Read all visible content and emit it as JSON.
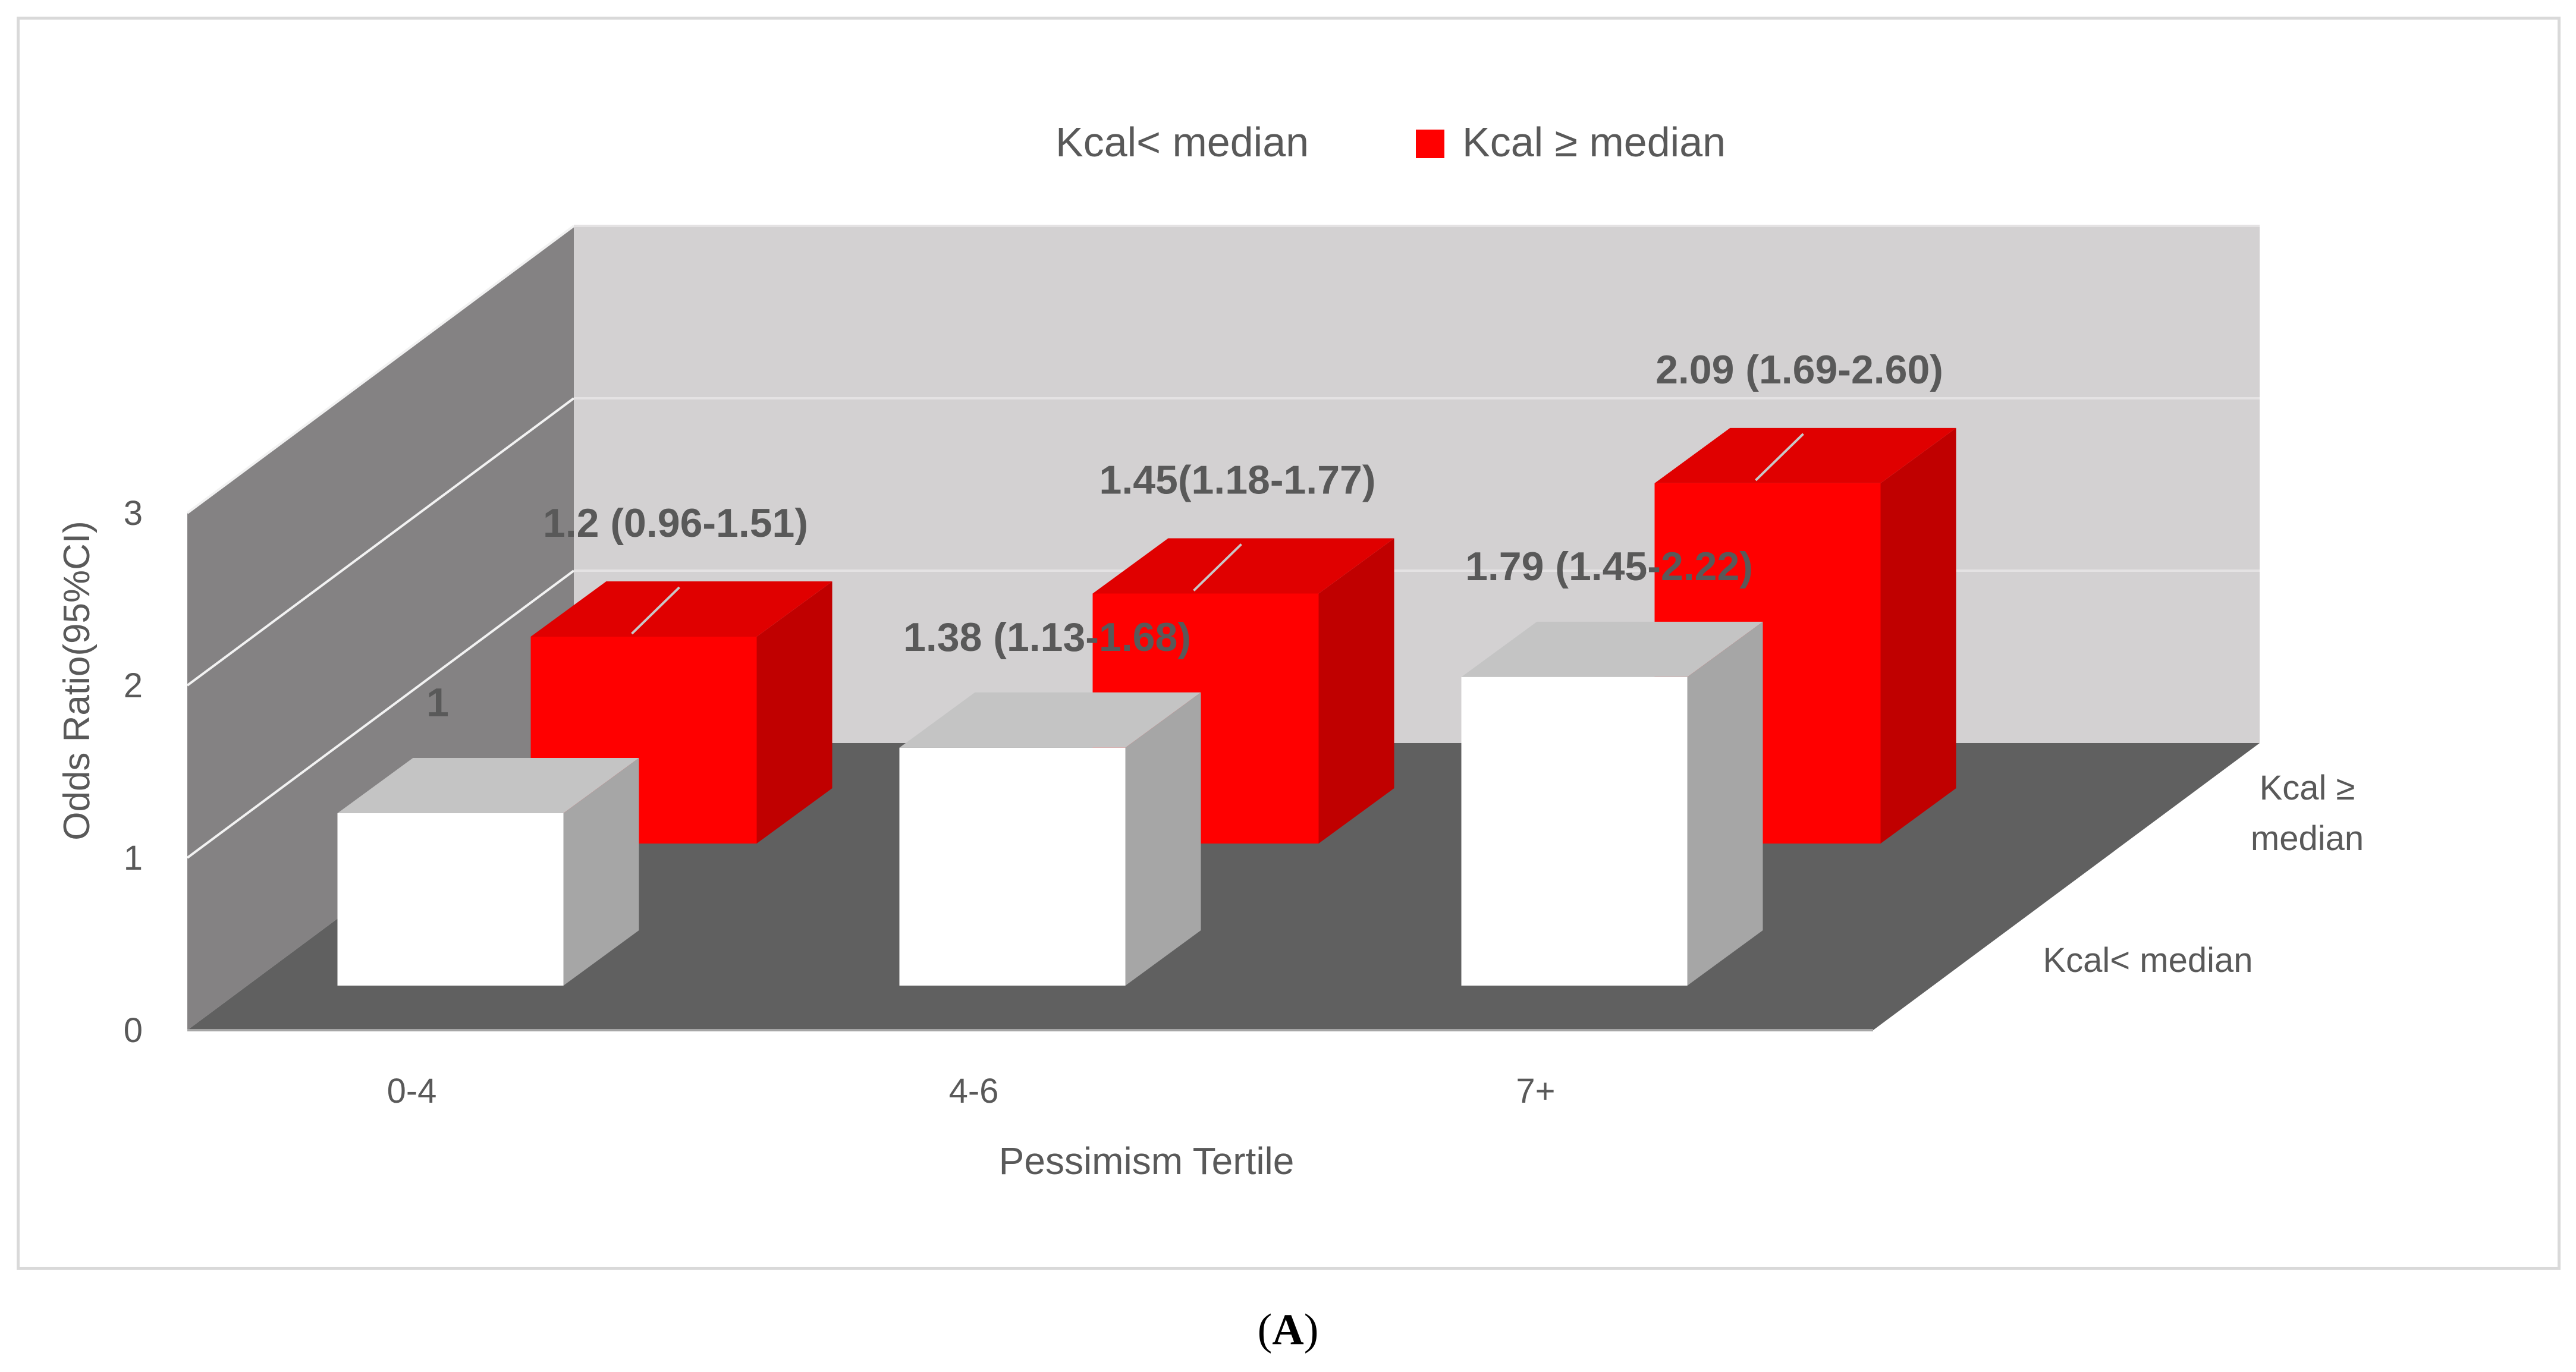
{
  "chart_data": {
    "type": "bar",
    "projection": "3d",
    "title": "",
    "xlabel": "Pessimism Tertile",
    "ylabel": "Odds Ratio(95%CI)",
    "ylim": [
      0,
      3
    ],
    "yticks": [
      "0",
      "1",
      "2",
      "3"
    ],
    "categories": [
      "0-4",
      "4-6",
      "7+"
    ],
    "depth_categories": [
      "Kcal< median",
      "Kcal ≥ median"
    ],
    "legend": {
      "position": "top",
      "entries": [
        "Kcal< median",
        "Kcal ≥ median"
      ]
    },
    "grid": true,
    "series": [
      {
        "name": "Kcal< median",
        "color": "#ffffff",
        "values": [
          1,
          1.38,
          1.79
        ],
        "labels": [
          "1",
          "1.38 (1.13-1.68)",
          "1.79 (1.45-2.22)"
        ]
      },
      {
        "name": "Kcal ≥ median",
        "color": "#ff0000",
        "values": [
          1.2,
          1.45,
          2.09
        ],
        "labels": [
          "1.2 (0.96-1.51)",
          "1.45(1.18-1.77)",
          "2.09 (1.69-2.60)"
        ]
      }
    ]
  },
  "panel_label": "A"
}
